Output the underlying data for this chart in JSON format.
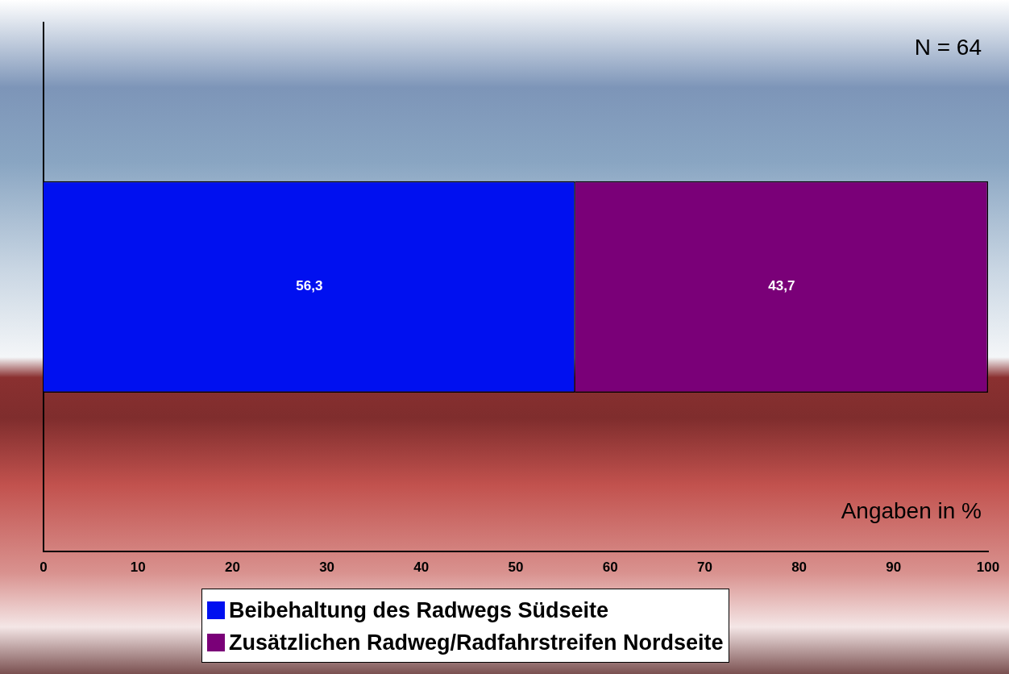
{
  "chart_data": {
    "type": "bar",
    "orientation": "horizontal",
    "stacked": true,
    "categories": [
      null
    ],
    "series": [
      {
        "name": "Beibehaltung des Radwegs Südseite",
        "color": "#0010f0",
        "values": [
          56.3
        ],
        "value_labels": [
          "56,3"
        ]
      },
      {
        "name": "Zusätzlichen Radweg/Radfahrstreifen Nordseite",
        "color": "#7a0078",
        "values": [
          43.7
        ],
        "value_labels": [
          "43,7"
        ]
      }
    ],
    "xlim": [
      0,
      100
    ],
    "xticks": [
      0,
      10,
      20,
      30,
      40,
      50,
      60,
      70,
      80,
      90,
      100
    ],
    "grid": false,
    "legend": "bottom",
    "annotations": [
      "N = 64",
      "Angaben in %"
    ]
  }
}
